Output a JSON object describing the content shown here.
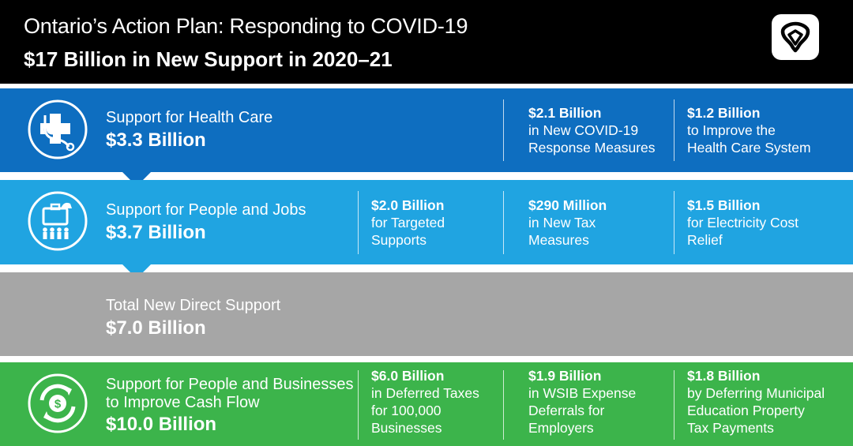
{
  "header": {
    "title": "Ontario’s Action Plan: Responding to COVID-19",
    "subtitle": "$17 Billion in New Support in 2020–21",
    "logo_icon": "ontario-trillium-logo"
  },
  "colors": {
    "header_bg": "#000000",
    "health": "#0e6ec0",
    "people": "#20a4e1",
    "total": "#a6a6a6",
    "business": "#3cb44b"
  },
  "health": {
    "icon": "medical-cross-stethoscope-icon",
    "label": "Support for Health Care",
    "amount": "$3.3 Billion",
    "items": [
      {
        "amount": "$2.1 Billion",
        "desc": "in New COVID-19\nResponse Measures"
      },
      {
        "amount": "$1.2 Billion",
        "desc": "to Improve the\nHealth Care System"
      }
    ]
  },
  "people": {
    "icon": "briefcase-family-icon",
    "label": "Support for People and Jobs",
    "amount": "$3.7 Billion",
    "items": [
      {
        "amount": "$2.0 Billion",
        "desc": "for Targeted\nSupports"
      },
      {
        "amount": "$290 Million",
        "desc": "in New Tax\nMeasures"
      },
      {
        "amount": "$1.5 Billion",
        "desc": "for Electricity Cost\nRelief"
      }
    ]
  },
  "total": {
    "label": "Total New Direct Support",
    "amount": "$7.0 Billion"
  },
  "business": {
    "icon": "dollar-cycle-arrows-icon",
    "label": "Support for People and Businesses\nto Improve Cash Flow",
    "amount": "$10.0 Billion",
    "items": [
      {
        "amount": "$6.0 Billion",
        "desc": "in Deferred Taxes\nfor 100,000\nBusinesses"
      },
      {
        "amount": "$1.9 Billion",
        "desc": "in WSIB Expense\nDeferrals for\nEmployers"
      },
      {
        "amount": "$1.8 Billion",
        "desc": "by Deferring Municipal\nEducation Property\nTax Payments"
      }
    ]
  }
}
